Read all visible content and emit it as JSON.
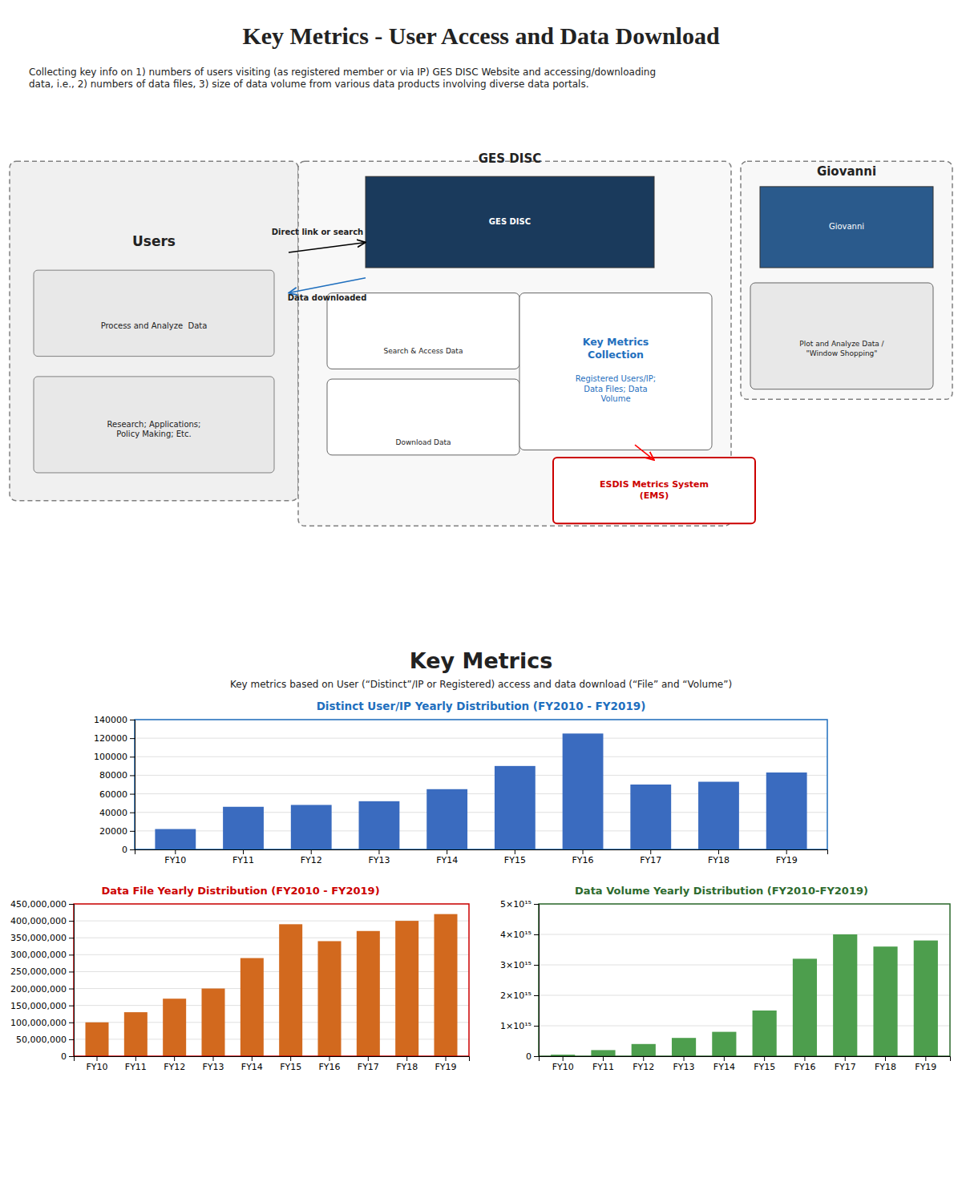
{
  "title": "Key Metrics - User Access and Data Download",
  "subtitle": "Collecting key info on 1) numbers of users visiting (as registered member or via IP) GES DISC Website and accessing/downloading\ndata, i.e., 2) numbers of data files, 3) size of data volume from various data products involving diverse data portals.",
  "section_title": "Key Metrics",
  "section_subtitle": "Key metrics based on User (“Distinct”/IP or Registered) access and data download (“File” and “Volume”)",
  "annotations": [
    "Users",
    "Process and Analyze  Data",
    "Research; Applications;\nPolicy Making; Etc.",
    "GES DISC",
    "GES DISC",
    "Search & Access Data",
    "Download Data",
    "Key Metrics\nCollection",
    "Registered Users/IP;\nData Files; Data\nVolume",
    "ESDIS Metrics System\n(EMS)",
    "Giovanni",
    "Giovanni",
    "Plot and Analyze Data /\n\"Window Shopping\"",
    "Direct link or search",
    "Data downloaded"
  ],
  "chart_data": [
    {
      "type": "bar",
      "title": "Distinct User/IP Yearly Distribution (FY2010 - FY2019)",
      "categories": [
        "FY10",
        "FY11",
        "FY12",
        "FY13",
        "FY14",
        "FY15",
        "FY16",
        "FY17",
        "FY18",
        "FY19"
      ],
      "values": [
        22000,
        46000,
        48000,
        52000,
        65000,
        90000,
        125000,
        70000,
        73000,
        83000
      ],
      "color": "#3a6bbf",
      "ylim": [
        0,
        140000
      ],
      "yticks": [
        0,
        20000,
        40000,
        60000,
        80000,
        100000,
        120000,
        140000
      ],
      "grid": true
    },
    {
      "type": "bar",
      "title": "Data File Yearly Distribution (FY2010 - FY2019)",
      "categories": [
        "FY10",
        "FY11",
        "FY12",
        "FY13",
        "FY14",
        "FY15",
        "FY16",
        "FY17",
        "FY18",
        "FY19"
      ],
      "values": [
        100000000,
        130000000,
        170000000,
        200000000,
        290000000,
        390000000,
        340000000,
        370000000,
        400000000,
        420000000
      ],
      "color": "#d2691e",
      "ylim": [
        0,
        450000000
      ],
      "yticks": [
        0,
        {
          "value": 50000000,
          "label": "50,000,000"
        },
        {
          "value": 100000000,
          "label": "100,000,000"
        },
        {
          "value": 150000000,
          "label": "150,000,000"
        },
        {
          "value": 200000000,
          "label": "200,000,000"
        },
        {
          "value": 250000000,
          "label": "250,000,000"
        },
        {
          "value": 300000000,
          "label": "300,000,000"
        },
        {
          "value": 350000000,
          "label": "350,000,000"
        },
        {
          "value": 400000000,
          "label": "400,000,000"
        },
        {
          "value": 450000000,
          "label": "450,000,000"
        }
      ],
      "grid": true
    },
    {
      "type": "bar",
      "title": "Data Volume Yearly Distribution (FY2010-FY2019)",
      "categories": [
        "FY10",
        "FY11",
        "FY12",
        "FY13",
        "FY14",
        "FY15",
        "FY16",
        "FY17",
        "FY18",
        "FY19"
      ],
      "values": [
        50000000000000.0,
        200000000000000.0,
        400000000000000.0,
        600000000000000.0,
        800000000000000.0,
        1500000000000000.0,
        3200000000000000.0,
        4000000000000000.0,
        3600000000000000.0,
        3800000000000000.0
      ],
      "color": "#4d9e4d",
      "ylim": [
        0,
        5000000000000000.0
      ],
      "yticks": [
        0,
        {
          "value": 1000000000000000.0,
          "label": "1×10¹⁵"
        },
        {
          "value": 2000000000000000.0,
          "label": "2×10¹⁵"
        },
        {
          "value": 3000000000000000.0,
          "label": "3×10¹⁵"
        },
        {
          "value": 4000000000000000.0,
          "label": "4×10¹⁵"
        },
        {
          "value": 5000000000000000.0,
          "label": "5×10¹⁵"
        }
      ],
      "grid": true
    }
  ]
}
